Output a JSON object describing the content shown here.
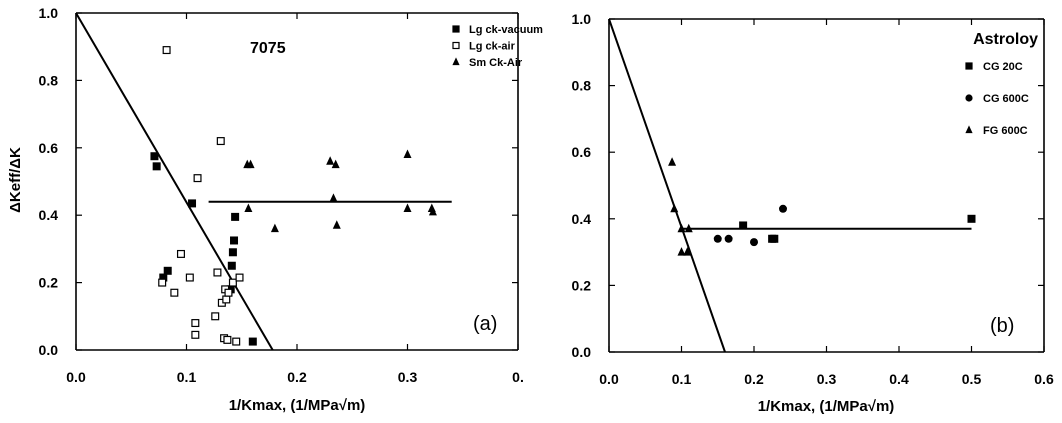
{
  "chart_data": [
    {
      "type": "scatter",
      "title": "7075",
      "panel_label": "(a)",
      "xlabel": "1/Kmax, (1/MPa√m)",
      "ylabel": "ΔKeff/ΔK",
      "xlim": [
        0,
        0.4
      ],
      "ylim": [
        0,
        1.0
      ],
      "xticks": [
        "0.0",
        "0.1",
        "0.2",
        "0.3",
        "0."
      ],
      "yticks": [
        "0.0",
        "0.2",
        "0.4",
        "0.6",
        "0.8",
        "1.0"
      ],
      "grid": false,
      "legend_position": "top-right",
      "series": [
        {
          "name": "Lg ck-vacuum",
          "marker": "filled-square",
          "x": [
            0.071,
            0.073,
            0.079,
            0.083,
            0.105,
            0.14,
            0.141,
            0.142,
            0.143,
            0.144,
            0.16
          ],
          "y": [
            0.575,
            0.545,
            0.215,
            0.235,
            0.435,
            0.18,
            0.25,
            0.29,
            0.325,
            0.395,
            0.025
          ]
        },
        {
          "name": "Lg ck-air",
          "marker": "open-square",
          "x": [
            0.082,
            0.078,
            0.089,
            0.095,
            0.103,
            0.108,
            0.108,
            0.11,
            0.126,
            0.128,
            0.131,
            0.132,
            0.134,
            0.135,
            0.136,
            0.137,
            0.138,
            0.142,
            0.145,
            0.148
          ],
          "y": [
            0.89,
            0.2,
            0.17,
            0.285,
            0.215,
            0.08,
            0.045,
            0.51,
            0.1,
            0.23,
            0.62,
            0.14,
            0.035,
            0.18,
            0.15,
            0.03,
            0.17,
            0.2,
            0.025,
            0.215
          ]
        },
        {
          "name": "Sm Ck-Air",
          "marker": "filled-triangle",
          "x": [
            0.155,
            0.158,
            0.156,
            0.18,
            0.23,
            0.233,
            0.235,
            0.236,
            0.3,
            0.3,
            0.322,
            0.323
          ],
          "y": [
            0.55,
            0.55,
            0.42,
            0.36,
            0.56,
            0.45,
            0.55,
            0.37,
            0.58,
            0.42,
            0.42,
            0.41
          ]
        }
      ],
      "fit_lines": [
        {
          "x": [
            0.0,
            0.178
          ],
          "y": [
            1.0,
            0.0
          ]
        },
        {
          "x": [
            0.12,
            0.34
          ],
          "y": [
            0.44,
            0.44
          ]
        }
      ]
    },
    {
      "type": "scatter",
      "title": "Astroloy",
      "panel_label": "(b)",
      "xlabel": "1/Kmax, (1/MPa√m)",
      "ylabel": "",
      "xlim": [
        0,
        0.6
      ],
      "ylim": [
        0,
        1.0
      ],
      "xticks": [
        "0.0",
        "0.1",
        "0.2",
        "0.3",
        "0.4",
        "0.5",
        "0.6"
      ],
      "yticks": [
        "0.0",
        "0.2",
        "0.4",
        "0.6",
        "0.8",
        "1.0"
      ],
      "grid": false,
      "legend_position": "top-right",
      "series": [
        {
          "name": "CG 20C",
          "marker": "filled-square",
          "x": [
            0.185,
            0.225,
            0.228,
            0.5
          ],
          "y": [
            0.38,
            0.34,
            0.34,
            0.4
          ]
        },
        {
          "name": "CG 600C",
          "marker": "filled-circle",
          "x": [
            0.15,
            0.165,
            0.2,
            0.24
          ],
          "y": [
            0.34,
            0.34,
            0.33,
            0.43
          ]
        },
        {
          "name": "FG 600C",
          "marker": "filled-triangle",
          "x": [
            0.087,
            0.09,
            0.1,
            0.11,
            0.1,
            0.108
          ],
          "y": [
            0.57,
            0.43,
            0.37,
            0.37,
            0.3,
            0.3
          ]
        }
      ],
      "fit_lines": [
        {
          "x": [
            0.0,
            0.16
          ],
          "y": [
            1.0,
            0.0
          ]
        },
        {
          "x": [
            0.1,
            0.5
          ],
          "y": [
            0.37,
            0.37
          ]
        }
      ]
    }
  ]
}
